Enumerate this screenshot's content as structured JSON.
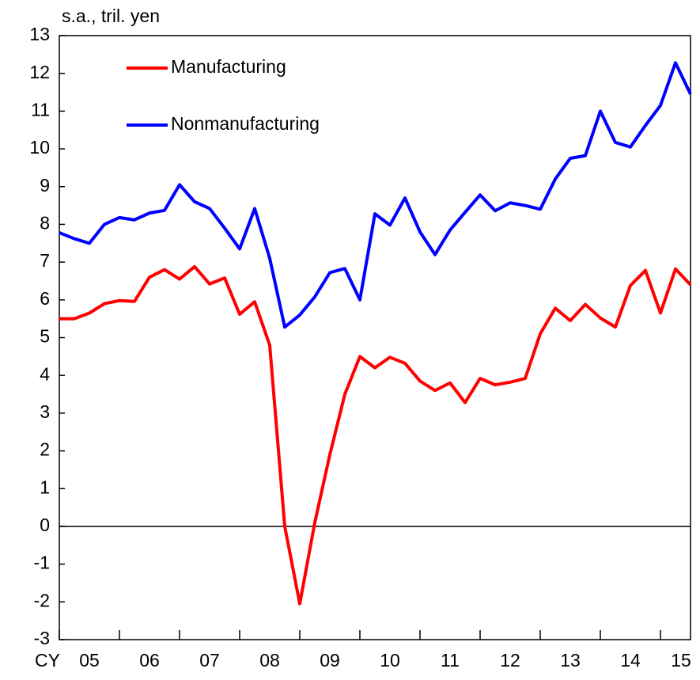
{
  "chart_data": {
    "type": "line",
    "y_unit_label": "s.a., tril. yen",
    "x_prefix": "CY",
    "categories": [
      null,
      null,
      "05",
      null,
      null,
      null,
      "06",
      null,
      null,
      null,
      "07",
      null,
      null,
      null,
      "08",
      null,
      null,
      null,
      "09",
      null,
      null,
      null,
      "10",
      null,
      null,
      null,
      "11",
      null,
      null,
      null,
      "12",
      null,
      null,
      null,
      "13",
      null,
      null,
      null,
      "14",
      null,
      null,
      null,
      "15"
    ],
    "series": [
      {
        "name": "Manufacturing",
        "color": "#ff0000",
        "values": [
          5.5,
          5.5,
          5.65,
          5.9,
          5.98,
          5.96,
          6.6,
          6.8,
          6.55,
          6.88,
          6.42,
          6.58,
          5.62,
          5.95,
          4.8,
          0.0,
          -2.05,
          0.1,
          1.9,
          3.5,
          4.5,
          4.2,
          4.48,
          4.32,
          3.85,
          3.6,
          3.8,
          3.28,
          3.92,
          3.75,
          3.82,
          3.92,
          5.1,
          5.78,
          5.45,
          5.88,
          5.52,
          5.28,
          6.38,
          6.78,
          5.65,
          6.82,
          6.4
        ]
      },
      {
        "name": "Nonmanufacturing",
        "color": "#0000ff",
        "values": [
          7.78,
          7.62,
          7.5,
          8.0,
          8.18,
          8.12,
          8.3,
          8.37,
          9.05,
          8.6,
          8.42,
          7.9,
          7.35,
          8.42,
          7.1,
          5.28,
          5.6,
          6.08,
          6.72,
          6.83,
          6.0,
          8.28,
          7.98,
          8.7,
          7.8,
          7.2,
          7.85,
          8.32,
          8.78,
          8.36,
          8.57,
          8.5,
          8.4,
          9.2,
          9.75,
          9.82,
          11.0,
          10.17,
          10.05,
          10.62,
          11.15,
          12.28,
          11.45
        ]
      }
    ],
    "ylim": [
      -3,
      13
    ],
    "yticks": [
      -3,
      -2,
      -1,
      0,
      1,
      2,
      3,
      4,
      5,
      6,
      7,
      8,
      9,
      10,
      11,
      12,
      13
    ],
    "zero_line": true
  }
}
